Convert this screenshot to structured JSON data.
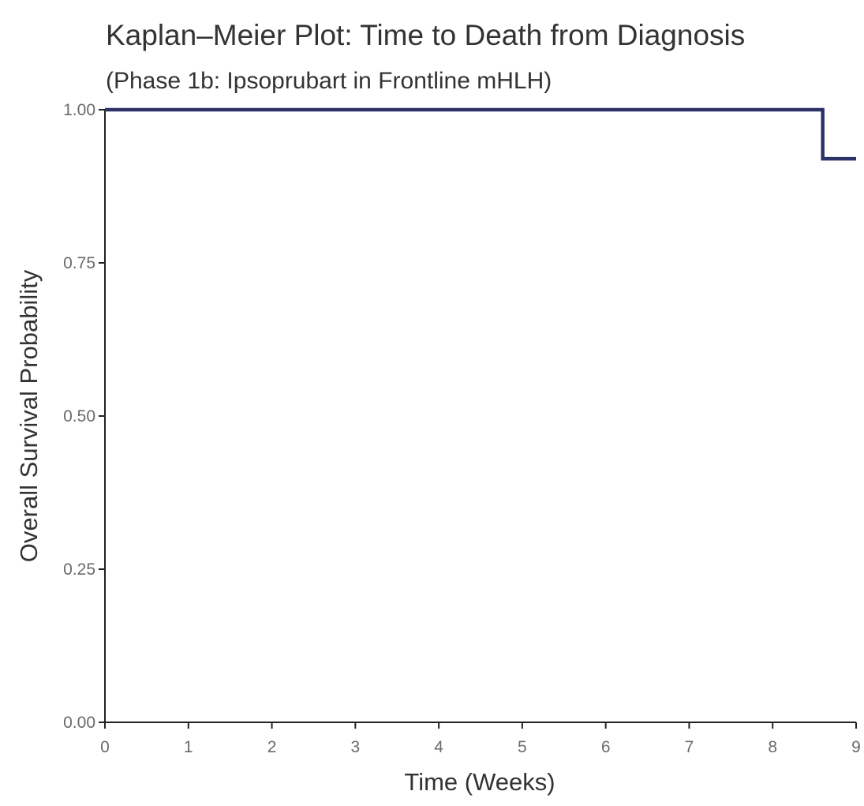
{
  "chart_data": {
    "type": "line",
    "title": "Kaplan–Meier Plot: Time to Death from Diagnosis",
    "subtitle": "(Phase 1b: Ipsoprubart in Frontline mHLH)",
    "xlabel": "Time (Weeks)",
    "ylabel": "Overall Survival Probability",
    "xlim": [
      0,
      9
    ],
    "ylim": [
      0,
      1
    ],
    "x_ticks": [
      0,
      1,
      2,
      3,
      4,
      5,
      6,
      7,
      8,
      9
    ],
    "y_ticks": [
      0,
      0.25,
      0.5,
      0.75,
      1
    ],
    "x_tick_labels": [
      "0",
      "1",
      "2",
      "3",
      "4",
      "5",
      "6",
      "7",
      "8",
      "9"
    ],
    "y_tick_labels": [
      "0.00",
      "0.25",
      "0.50",
      "0.75",
      "1.00"
    ],
    "grid": false,
    "legend": "none",
    "series": [
      {
        "step": "post",
        "color": "#2e3168",
        "x": [
          0,
          8.6,
          9
        ],
        "y": [
          1.0,
          0.92,
          0.92
        ]
      }
    ]
  }
}
